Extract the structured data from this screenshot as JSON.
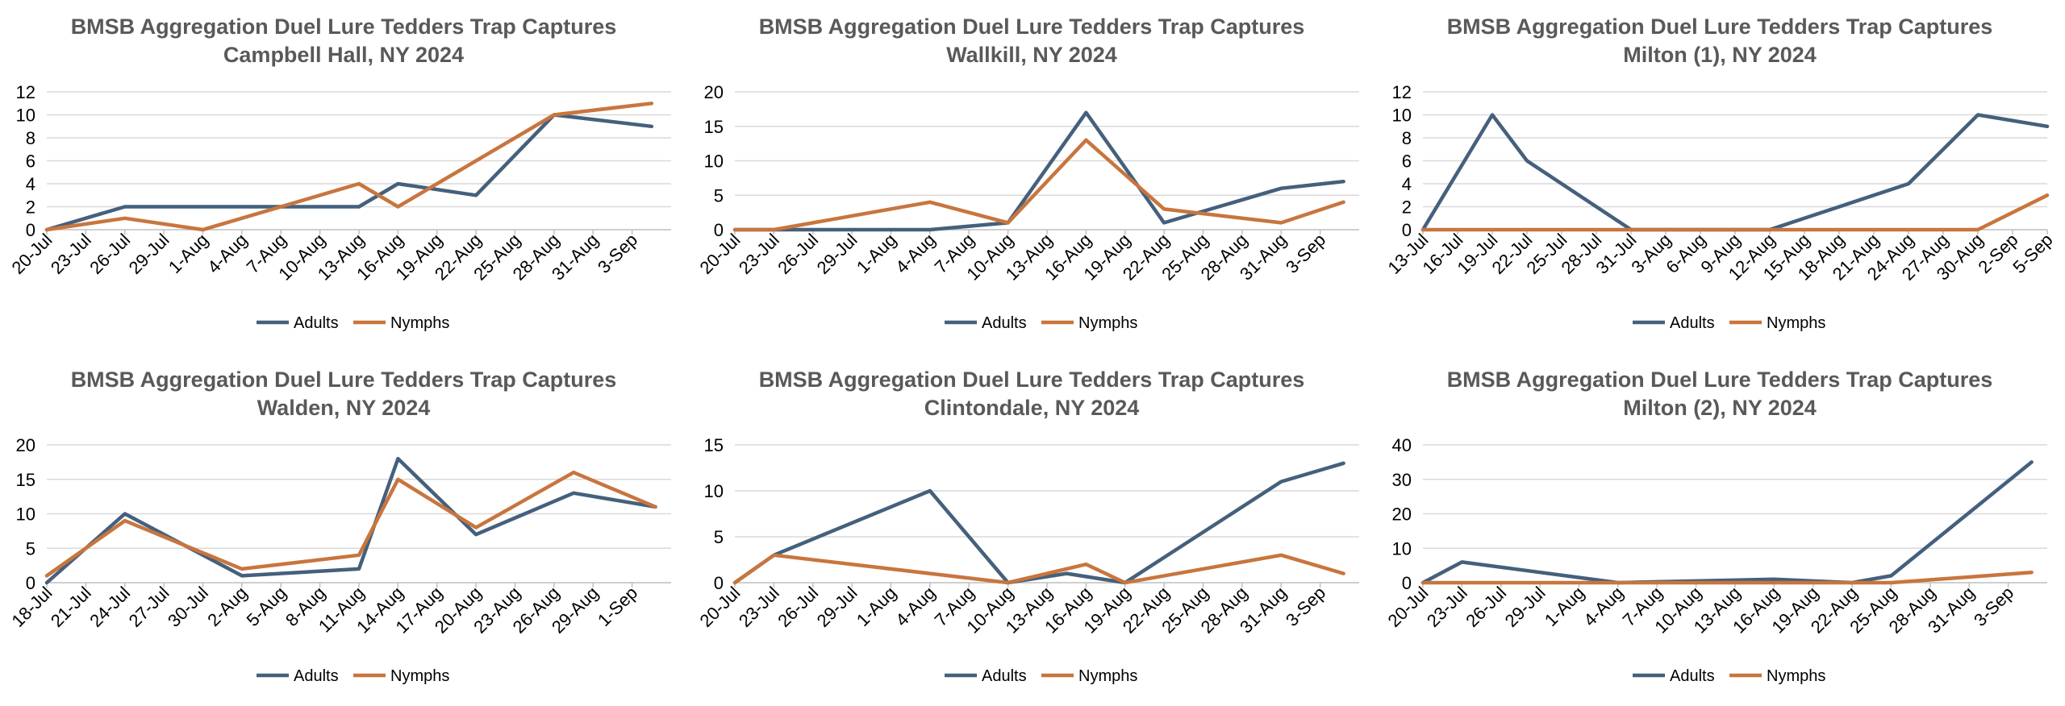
{
  "colors": {
    "adults": "#44607C",
    "nymphs": "#C8753E",
    "grid": "#D9D9D9",
    "axis": "#BFBFBF",
    "title": "#595959"
  },
  "chart_data": [
    {
      "type": "line",
      "title": "BMSB Aggregation Duel Lure Tedders Trap Captures",
      "subtitle": "Campbell Hall, NY 2024",
      "xlabel": "",
      "ylabel": "",
      "x_ticks": [
        "20-Jul",
        "23-Jul",
        "26-Jul",
        "29-Jul",
        "1-Aug",
        "4-Aug",
        "7-Aug",
        "10-Aug",
        "13-Aug",
        "16-Aug",
        "19-Aug",
        "22-Aug",
        "25-Aug",
        "28-Aug",
        "31-Aug",
        "3-Sep"
      ],
      "x_range": [
        0,
        16
      ],
      "y_ticks": [
        0,
        2,
        4,
        6,
        8,
        10,
        12
      ],
      "ylim": [
        0,
        12
      ],
      "grid": true,
      "legend": "bottom",
      "series": [
        {
          "name": "Adults",
          "x": [
            0,
            2,
            7,
            8,
            9,
            11,
            13,
            15.5
          ],
          "values": [
            0,
            2,
            2,
            2,
            4,
            3,
            10,
            9
          ]
        },
        {
          "name": "Nymphs",
          "x": [
            0,
            2,
            4,
            8,
            9,
            13,
            15.5
          ],
          "values": [
            0,
            1,
            0,
            4,
            2,
            10,
            11
          ]
        }
      ]
    },
    {
      "type": "line",
      "title": "BMSB Aggregation Duel Lure Tedders Trap Captures",
      "subtitle": "Wallkill, NY 2024",
      "xlabel": "",
      "ylabel": "",
      "x_ticks": [
        "20-Jul",
        "23-Jul",
        "26-Jul",
        "29-Jul",
        "1-Aug",
        "4-Aug",
        "7-Aug",
        "10-Aug",
        "13-Aug",
        "16-Aug",
        "19-Aug",
        "22-Aug",
        "25-Aug",
        "28-Aug",
        "31-Aug",
        "3-Sep"
      ],
      "x_range": [
        0,
        16
      ],
      "y_ticks": [
        0,
        5,
        10,
        15,
        20
      ],
      "ylim": [
        0,
        20
      ],
      "grid": true,
      "legend": "bottom",
      "series": [
        {
          "name": "Adults",
          "x": [
            0,
            5,
            7,
            9,
            11,
            14,
            15.6
          ],
          "values": [
            0,
            0,
            1,
            17,
            1,
            6,
            7
          ]
        },
        {
          "name": "Nymphs",
          "x": [
            0,
            1,
            5,
            7,
            9,
            11,
            14,
            15.6
          ],
          "values": [
            0,
            0,
            4,
            1,
            13,
            3,
            1,
            4
          ]
        }
      ]
    },
    {
      "type": "line",
      "title": "BMSB Aggregation Duel Lure Tedders Trap Captures",
      "subtitle": "Milton (1), NY 2024",
      "xlabel": "",
      "ylabel": "",
      "x_ticks": [
        "13-Jul",
        "16-Jul",
        "19-Jul",
        "22-Jul",
        "25-Jul",
        "28-Jul",
        "31-Jul",
        "3-Aug",
        "6-Aug",
        "9-Aug",
        "12-Aug",
        "15-Aug",
        "18-Aug",
        "21-Aug",
        "24-Aug",
        "27-Aug",
        "30-Aug",
        "2-Sep",
        "5-Sep"
      ],
      "x_range": [
        0,
        18
      ],
      "y_ticks": [
        0,
        2,
        4,
        6,
        8,
        10,
        12
      ],
      "ylim": [
        0,
        12
      ],
      "grid": true,
      "legend": "bottom",
      "series": [
        {
          "name": "Adults",
          "x": [
            0,
            2,
            3,
            6,
            10,
            11,
            14,
            16,
            18
          ],
          "values": [
            0,
            10,
            6,
            0,
            0,
            1,
            4,
            10,
            9
          ]
        },
        {
          "name": "Nymphs",
          "x": [
            0,
            16,
            18
          ],
          "values": [
            0,
            0,
            3
          ]
        }
      ]
    },
    {
      "type": "line",
      "title": "BMSB Aggregation Duel Lure Tedders Trap Captures",
      "subtitle": "Walden, NY 2024",
      "xlabel": "",
      "ylabel": "",
      "x_ticks": [
        "18-Jul",
        "21-Jul",
        "24-Jul",
        "27-Jul",
        "30-Jul",
        "2-Aug",
        "5-Aug",
        "8-Aug",
        "11-Aug",
        "14-Aug",
        "17-Aug",
        "20-Aug",
        "23-Aug",
        "26-Aug",
        "29-Aug",
        "1-Sep"
      ],
      "x_range": [
        0,
        16
      ],
      "y_ticks": [
        0,
        5,
        10,
        15,
        20
      ],
      "ylim": [
        0,
        20
      ],
      "grid": true,
      "legend": "bottom",
      "series": [
        {
          "name": "Adults",
          "x": [
            0,
            2,
            5,
            8,
            9,
            11,
            13.5,
            15.6
          ],
          "values": [
            0,
            10,
            1,
            2,
            18,
            7,
            13,
            11
          ]
        },
        {
          "name": "Nymphs",
          "x": [
            0,
            2,
            5,
            8,
            9,
            11,
            13.5,
            15.6
          ],
          "values": [
            1,
            9,
            2,
            4,
            15,
            8,
            16,
            11
          ]
        }
      ]
    },
    {
      "type": "line",
      "title": "BMSB Aggregation Duel Lure Tedders Trap Captures",
      "subtitle": "Clintondale, NY 2024",
      "xlabel": "",
      "ylabel": "",
      "x_ticks": [
        "20-Jul",
        "23-Jul",
        "26-Jul",
        "29-Jul",
        "1-Aug",
        "4-Aug",
        "7-Aug",
        "10-Aug",
        "13-Aug",
        "16-Aug",
        "19-Aug",
        "22-Aug",
        "25-Aug",
        "28-Aug",
        "31-Aug",
        "3-Sep"
      ],
      "x_range": [
        0,
        16
      ],
      "y_ticks": [
        0,
        5,
        10,
        15
      ],
      "ylim": [
        0,
        15
      ],
      "grid": true,
      "legend": "bottom",
      "series": [
        {
          "name": "Adults",
          "x": [
            0,
            1,
            5,
            7,
            8.5,
            10,
            14,
            15.6
          ],
          "values": [
            0,
            3,
            10,
            0,
            1,
            0,
            11,
            13
          ]
        },
        {
          "name": "Nymphs",
          "x": [
            0,
            1,
            5,
            7,
            9,
            10,
            14,
            15.6
          ],
          "values": [
            0,
            3,
            1,
            0,
            2,
            0,
            3,
            1
          ]
        }
      ]
    },
    {
      "type": "line",
      "title": "BMSB Aggregation Duel Lure Tedders Trap Captures",
      "subtitle": "Milton (2), NY 2024",
      "xlabel": "",
      "ylabel": "",
      "x_ticks": [
        "20-Jul",
        "23-Jul",
        "26-Jul",
        "29-Jul",
        "1-Aug",
        "4-Aug",
        "7-Aug",
        "10-Aug",
        "13-Aug",
        "16-Aug",
        "19-Aug",
        "22-Aug",
        "25-Aug",
        "28-Aug",
        "31-Aug",
        "3-Sep"
      ],
      "x_range": [
        0,
        16
      ],
      "y_ticks": [
        0,
        10,
        20,
        30,
        40
      ],
      "ylim": [
        0,
        40
      ],
      "grid": true,
      "legend": "bottom",
      "series": [
        {
          "name": "Adults",
          "x": [
            0,
            1,
            5,
            9,
            11,
            12,
            15.6
          ],
          "values": [
            0,
            6,
            0,
            1,
            0,
            2,
            35
          ]
        },
        {
          "name": "Nymphs",
          "x": [
            0,
            12,
            15.6
          ],
          "values": [
            0,
            0,
            3
          ]
        }
      ]
    }
  ]
}
